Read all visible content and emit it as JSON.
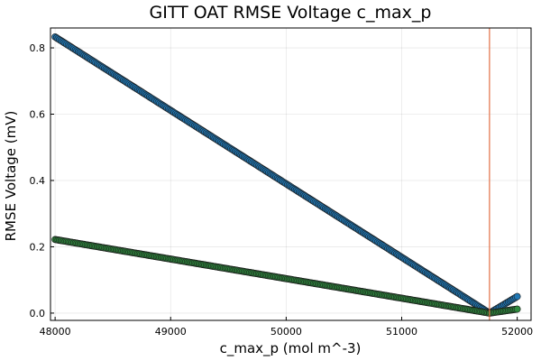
{
  "chart_data": {
    "type": "scatter",
    "title": "GITT OAT RMSE Voltage c_max_p",
    "xlabel": "c_max_p (mol m^-3)",
    "ylabel": "RMSE Voltage (mV)",
    "xlim": [
      47960,
      52120
    ],
    "ylim": [
      -0.022,
      0.86
    ],
    "xticks": [
      48000,
      49000,
      50000,
      51000,
      52000
    ],
    "yticks": [
      0.0,
      0.2,
      0.4,
      0.6,
      0.8
    ],
    "xtick_labels": [
      "48000",
      "49000",
      "50000",
      "51000",
      "52000"
    ],
    "ytick_labels": [
      "0.0",
      "0.2",
      "0.4",
      "0.6",
      "0.8"
    ],
    "grid": true,
    "legend": "none",
    "vline": {
      "x": 51760,
      "color": "#e26f46"
    },
    "series": [
      {
        "color": "#1f77b4",
        "segments": [
          {
            "x_start": 48000,
            "x_end": 51760,
            "y_start": 0.833,
            "y_end": 0.0,
            "points": 300
          },
          {
            "x_start": 51760,
            "x_end": 52000,
            "y_start": 0.0,
            "y_end": 0.05,
            "points": 20
          }
        ]
      },
      {
        "color": "#2e8b3e",
        "segments": [
          {
            "x_start": 48000,
            "x_end": 51760,
            "y_start": 0.222,
            "y_end": 0.0,
            "points": 300
          },
          {
            "x_start": 51760,
            "x_end": 52000,
            "y_start": 0.0,
            "y_end": 0.012,
            "points": 20
          }
        ]
      }
    ]
  }
}
